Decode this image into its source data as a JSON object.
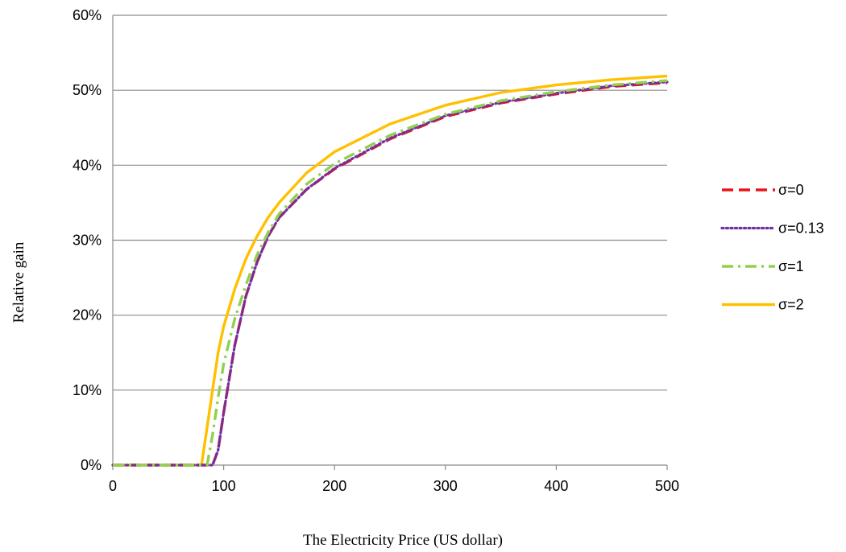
{
  "chart_data": {
    "type": "line",
    "title": "",
    "xlabel": "The Electricity Price (US dollar)",
    "ylabel": "Relative gain",
    "xlim": [
      0,
      500
    ],
    "ylim": [
      0,
      0.6
    ],
    "x_ticks": [
      0,
      100,
      200,
      300,
      400,
      500
    ],
    "y_ticks": [
      0,
      0.1,
      0.2,
      0.3,
      0.4,
      0.5,
      0.6
    ],
    "x_tick_labels": [
      "0",
      "100",
      "200",
      "300",
      "400",
      "500"
    ],
    "y_tick_labels": [
      "0%",
      "10%",
      "20%",
      "30%",
      "40%",
      "50%",
      "60%"
    ],
    "grid": "horizontal",
    "legend_position": "right",
    "series": [
      {
        "name": "σ=0",
        "color": "#e8131b",
        "style": "dashed",
        "x": [
          0,
          80,
          90,
          95,
          100,
          110,
          120,
          130,
          140,
          150,
          175,
          200,
          250,
          300,
          350,
          400,
          450,
          500
        ],
        "y": [
          0,
          0,
          0,
          0.02,
          0.07,
          0.16,
          0.225,
          0.27,
          0.305,
          0.33,
          0.368,
          0.395,
          0.435,
          0.465,
          0.483,
          0.495,
          0.505,
          0.51
        ]
      },
      {
        "name": "σ=0.13",
        "color": "#7030a0",
        "style": "dotted",
        "x": [
          0,
          80,
          90,
          95,
          100,
          110,
          120,
          130,
          140,
          150,
          175,
          200,
          250,
          300,
          350,
          400,
          450,
          500
        ],
        "y": [
          0,
          0,
          0,
          0.02,
          0.07,
          0.16,
          0.225,
          0.27,
          0.305,
          0.33,
          0.368,
          0.396,
          0.436,
          0.466,
          0.484,
          0.496,
          0.506,
          0.511
        ]
      },
      {
        "name": "σ=1",
        "color": "#92d050",
        "style": "dashdot",
        "x": [
          0,
          80,
          85,
          90,
          95,
          100,
          110,
          120,
          130,
          140,
          150,
          175,
          200,
          250,
          300,
          350,
          400,
          450,
          500
        ],
        "y": [
          0,
          0,
          0,
          0.04,
          0.09,
          0.135,
          0.195,
          0.24,
          0.28,
          0.31,
          0.335,
          0.375,
          0.402,
          0.44,
          0.468,
          0.486,
          0.498,
          0.507,
          0.513
        ]
      },
      {
        "name": "σ=2",
        "color": "#ffc000",
        "style": "solid",
        "x": [
          0,
          80,
          85,
          90,
          95,
          100,
          110,
          120,
          130,
          140,
          150,
          175,
          200,
          250,
          300,
          350,
          400,
          450,
          500
        ],
        "y": [
          0,
          0,
          0.05,
          0.1,
          0.15,
          0.185,
          0.235,
          0.275,
          0.305,
          0.33,
          0.35,
          0.39,
          0.418,
          0.455,
          0.48,
          0.497,
          0.507,
          0.514,
          0.519
        ]
      }
    ]
  }
}
